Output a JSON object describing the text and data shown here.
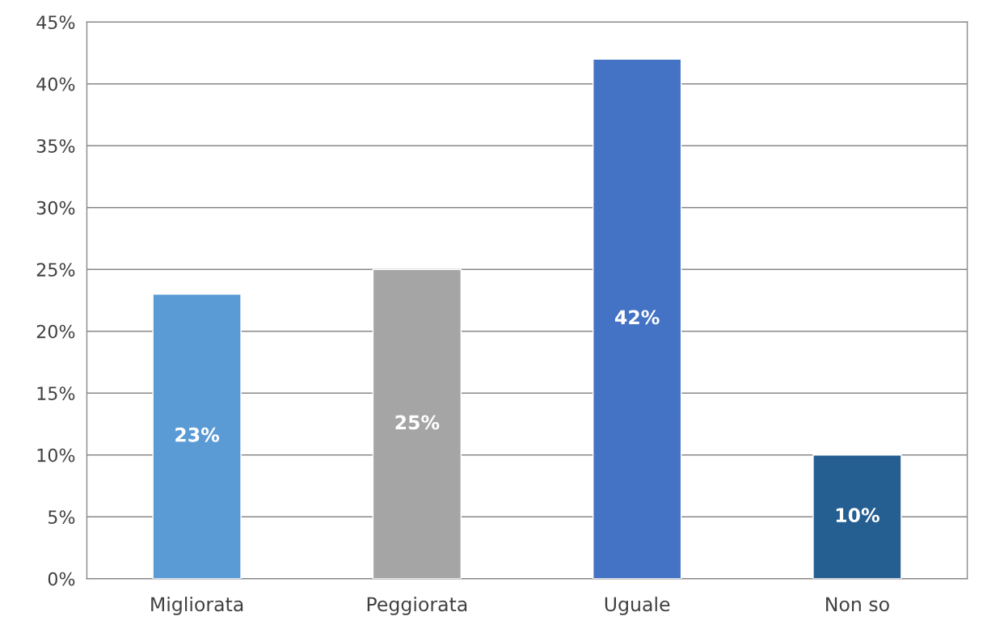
{
  "chart_data": {
    "type": "bar",
    "categories": [
      "Migliorata",
      "Peggiorata",
      "Uguale",
      "Non so"
    ],
    "values": [
      23,
      25,
      42,
      10
    ],
    "colors": [
      "#5b9bd5",
      "#a5a5a5",
      "#4472c4",
      "#255e91"
    ],
    "value_labels": [
      "23%",
      "25%",
      "42%",
      "10%"
    ],
    "ylim": [
      0,
      45
    ],
    "yticks": [
      {
        "value": 0,
        "label": "0%"
      },
      {
        "value": 5,
        "label": "5%"
      },
      {
        "value": 10,
        "label": "10%"
      },
      {
        "value": 15,
        "label": "15%"
      },
      {
        "value": 20,
        "label": "20%"
      },
      {
        "value": 25,
        "label": "25%"
      },
      {
        "value": 30,
        "label": "30%"
      },
      {
        "value": 35,
        "label": "35%"
      },
      {
        "value": 40,
        "label": "40%"
      },
      {
        "value": 45,
        "label": "45%"
      }
    ],
    "grid": "y"
  }
}
